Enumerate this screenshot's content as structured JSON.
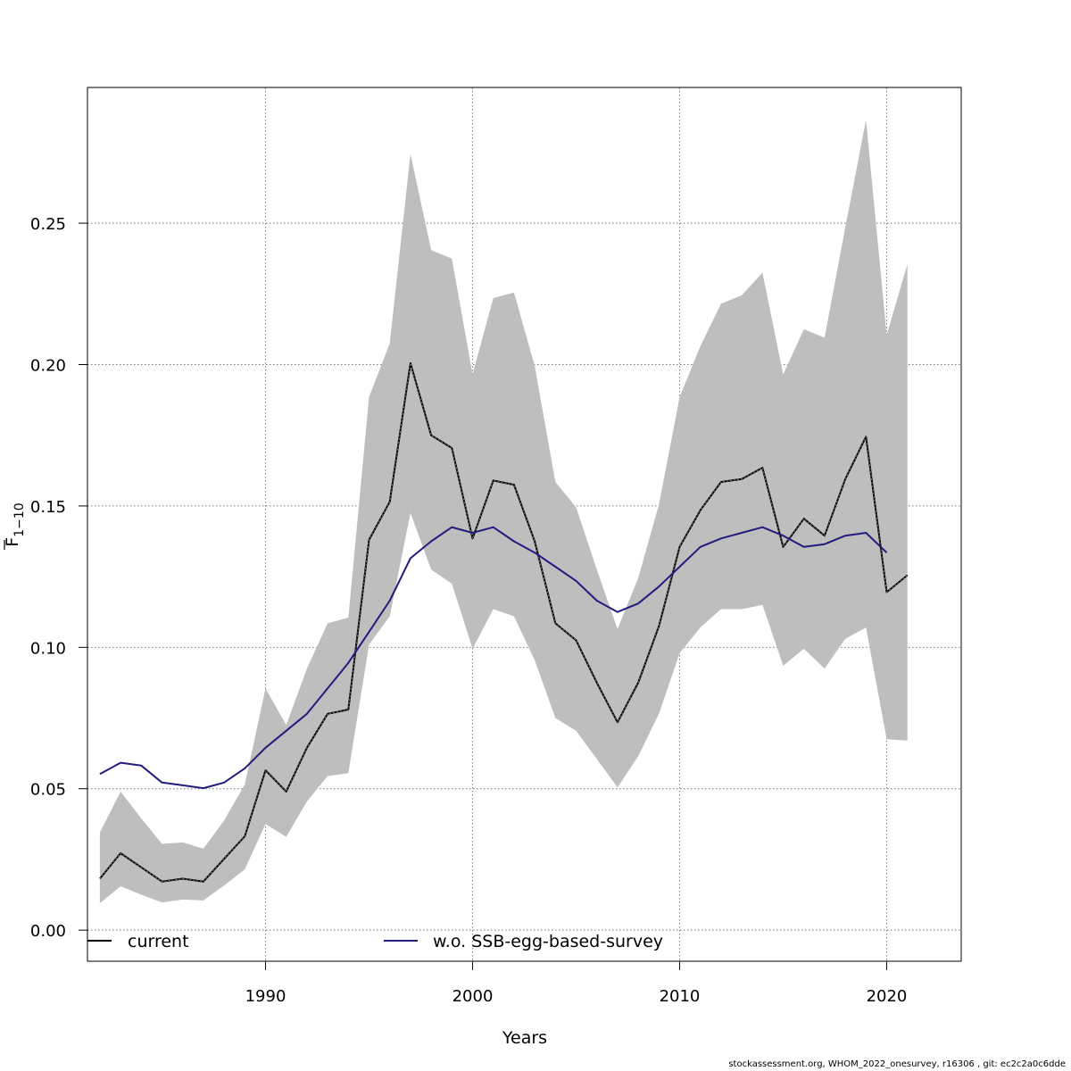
{
  "chart_data": {
    "type": "line",
    "xlabel": "Years",
    "ylabel": "F",
    "ylabel_subscript": "1−10",
    "xlim": [
      1981.4,
      2023.6
    ],
    "ylim": [
      -0.011,
      0.298
    ],
    "xticks": [
      {
        "value": 1990,
        "label": "1990"
      },
      {
        "value": 2000,
        "label": "2000"
      },
      {
        "value": 2010,
        "label": "2010"
      },
      {
        "value": 2020,
        "label": "2020"
      }
    ],
    "yticks": [
      {
        "value": 0.0,
        "label": "0.00"
      },
      {
        "value": 0.05,
        "label": "0.05"
      },
      {
        "value": 0.1,
        "label": "0.10"
      },
      {
        "value": 0.15,
        "label": "0.15"
      },
      {
        "value": 0.2,
        "label": "0.20"
      },
      {
        "value": 0.25,
        "label": "0.25"
      }
    ],
    "grid": true,
    "legend_position": "bottom",
    "band": {
      "color": "#bebebe",
      "x": [
        1982,
        1983,
        1984,
        1985,
        1986,
        1987,
        1988,
        1989,
        1990,
        1991,
        1992,
        1993,
        1994,
        1995,
        1996,
        1997,
        1998,
        1999,
        2000,
        2001,
        2002,
        2003,
        2004,
        2005,
        2006,
        2007,
        2008,
        2009,
        2010,
        2011,
        2012,
        2013,
        2014,
        2015,
        2016,
        2017,
        2018,
        2019,
        2020,
        2021
      ],
      "lower": [
        0.0095,
        0.0155,
        0.0125,
        0.0098,
        0.0108,
        0.0105,
        0.0158,
        0.0215,
        0.0375,
        0.033,
        0.0455,
        0.0545,
        0.0555,
        0.101,
        0.111,
        0.1475,
        0.1275,
        0.1225,
        0.0995,
        0.1135,
        0.111,
        0.0955,
        0.075,
        0.0705,
        0.0605,
        0.0505,
        0.0615,
        0.0765,
        0.098,
        0.107,
        0.1135,
        0.1135,
        0.115,
        0.0935,
        0.0995,
        0.0925,
        0.103,
        0.107,
        0.0675,
        0.067
      ],
      "upper": [
        0.0345,
        0.049,
        0.0395,
        0.0305,
        0.031,
        0.0288,
        0.0388,
        0.0515,
        0.0855,
        0.0725,
        0.0925,
        0.1085,
        0.1105,
        0.1885,
        0.2075,
        0.2745,
        0.2405,
        0.2375,
        0.1965,
        0.2235,
        0.2255,
        0.1995,
        0.1585,
        0.1495,
        0.1275,
        0.1065,
        0.1245,
        0.1505,
        0.1885,
        0.2065,
        0.2215,
        0.2245,
        0.2325,
        0.1965,
        0.2125,
        0.2095,
        0.2485,
        0.2865,
        0.2105,
        0.2355
      ]
    },
    "series": [
      {
        "name": "current",
        "color": "#000000",
        "style": "solid",
        "x": [
          1982,
          1983,
          1984,
          1985,
          1986,
          1987,
          1988,
          1989,
          1990,
          1991,
          1992,
          1993,
          1994,
          1995,
          1996,
          1997,
          1998,
          1999,
          2000,
          2001,
          2002,
          2003,
          2004,
          2005,
          2006,
          2007,
          2008,
          2009,
          2010,
          2011,
          2012,
          2013,
          2014,
          2015,
          2016,
          2017,
          2018,
          2019,
          2020,
          2021
        ],
        "y": [
          0.0182,
          0.0272,
          0.0222,
          0.0172,
          0.0182,
          0.0172,
          0.0252,
          0.0332,
          0.0565,
          0.049,
          0.0645,
          0.0765,
          0.078,
          0.138,
          0.1515,
          0.2005,
          0.175,
          0.1705,
          0.1385,
          0.159,
          0.1575,
          0.1375,
          0.1085,
          0.1025,
          0.0875,
          0.0735,
          0.0875,
          0.1075,
          0.1355,
          0.1485,
          0.1585,
          0.1595,
          0.1635,
          0.1355,
          0.1455,
          0.1395,
          0.1595,
          0.1745,
          0.1195,
          0.1255
        ]
      },
      {
        "name": "w.o. SSB-egg-based-survey",
        "color": "#231c7c",
        "style": "solid",
        "x": [
          1982,
          1983,
          1984,
          1985,
          1986,
          1987,
          1988,
          1989,
          1990,
          1991,
          1992,
          1993,
          1994,
          1995,
          1996,
          1997,
          1998,
          1999,
          2000,
          2001,
          2002,
          2003,
          2004,
          2005,
          2006,
          2007,
          2008,
          2009,
          2010,
          2011,
          2012,
          2013,
          2014,
          2015,
          2016,
          2017,
          2018,
          2019,
          2020
        ],
        "y": [
          0.0552,
          0.0592,
          0.0582,
          0.0522,
          0.0512,
          0.0502,
          0.0522,
          0.0572,
          0.0645,
          0.0705,
          0.0765,
          0.0855,
          0.0945,
          0.1055,
          0.1165,
          0.1315,
          0.1375,
          0.1425,
          0.1405,
          0.1425,
          0.1375,
          0.1335,
          0.1285,
          0.1235,
          0.1165,
          0.1125,
          0.1155,
          0.1215,
          0.1285,
          0.1355,
          0.1385,
          0.1405,
          0.1425,
          0.1395,
          0.1355,
          0.1365,
          0.1395,
          0.1405,
          0.1335
        ]
      }
    ]
  },
  "footer": "stockassessment.org, WHOM_2022_onesurvey, r16306 , git: ec2c2a0c6dde"
}
